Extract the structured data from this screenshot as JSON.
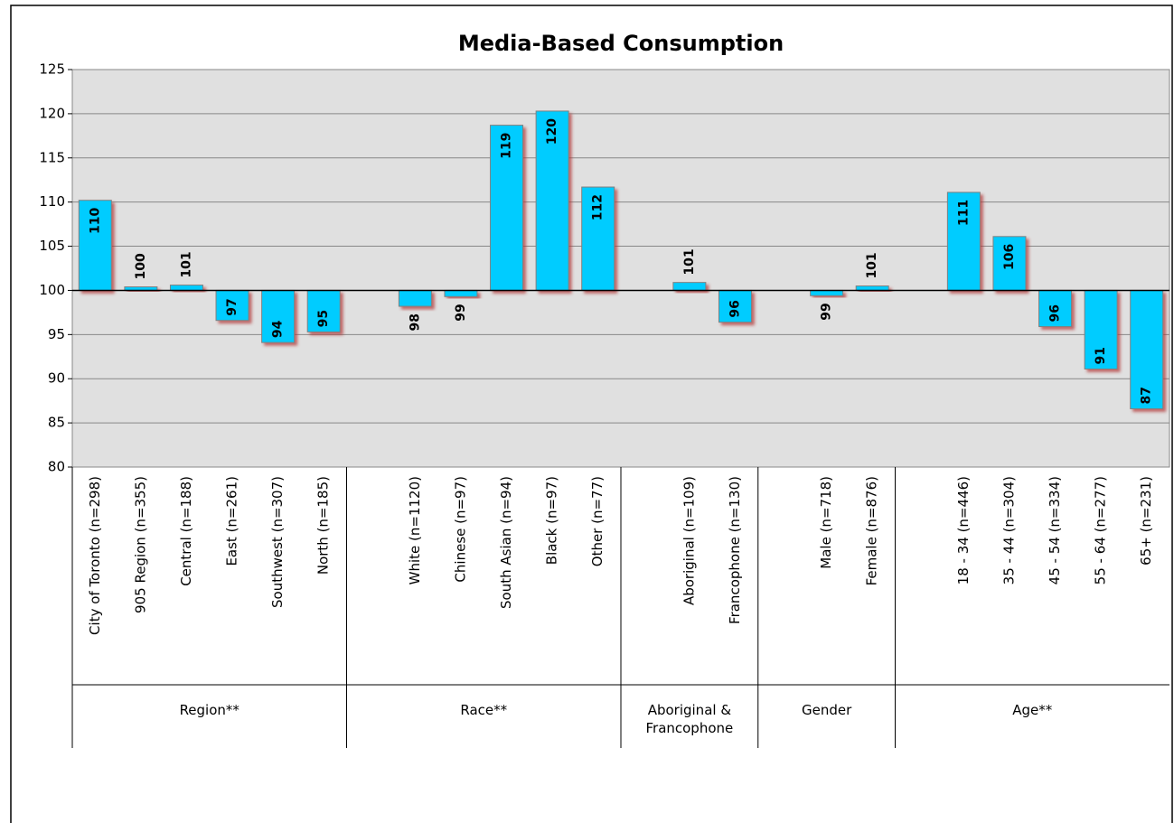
{
  "chart_data": {
    "type": "bar",
    "title": "Media-Based Consumption",
    "categories": [
      "City of Toronto (n=298)",
      "905 Region (n=355)",
      "Central (n=188)",
      "East (n=261)",
      "Southwest (n=307)",
      "North (n=185)",
      null,
      "White (n=1120)",
      "Chinese (n=97)",
      "South Asian (n=94)",
      "Black (n=97)",
      "Other (n=77)",
      null,
      "Aboriginal (n=109)",
      "Francophone (n=130)",
      null,
      "Male (n=718)",
      "Female (n=876)",
      null,
      "18 - 34 (n=446)",
      "35 - 44 (n=304)",
      "45 - 54 (n=334)",
      "55 - 64 (n=277)",
      "65+ (n=231)"
    ],
    "values": [
      110.2,
      100.4,
      100.6,
      96.6,
      94.1,
      95.3,
      null,
      98.2,
      99.3,
      118.7,
      120.3,
      111.7,
      null,
      100.9,
      96.4,
      null,
      99.4,
      100.5,
      null,
      111.1,
      106.1,
      95.9,
      91.1,
      86.6
    ],
    "value_labels": [
      "110",
      "100",
      "101",
      "97",
      "94",
      "95",
      null,
      "98",
      "99",
      "119",
      "120",
      "112",
      null,
      "101",
      "96",
      null,
      "99",
      "101",
      null,
      "111",
      "106",
      "96",
      "91",
      "87"
    ],
    "groups": [
      "Region**",
      "Race**",
      "Aboriginal & Francophone",
      "Gender",
      "Age**"
    ],
    "baseline": 100,
    "color": "#00ccff",
    "ylim": [
      80,
      125
    ],
    "yticks": [
      80,
      85,
      90,
      95,
      100,
      105,
      110,
      115,
      120,
      125
    ],
    "grid": true
  }
}
